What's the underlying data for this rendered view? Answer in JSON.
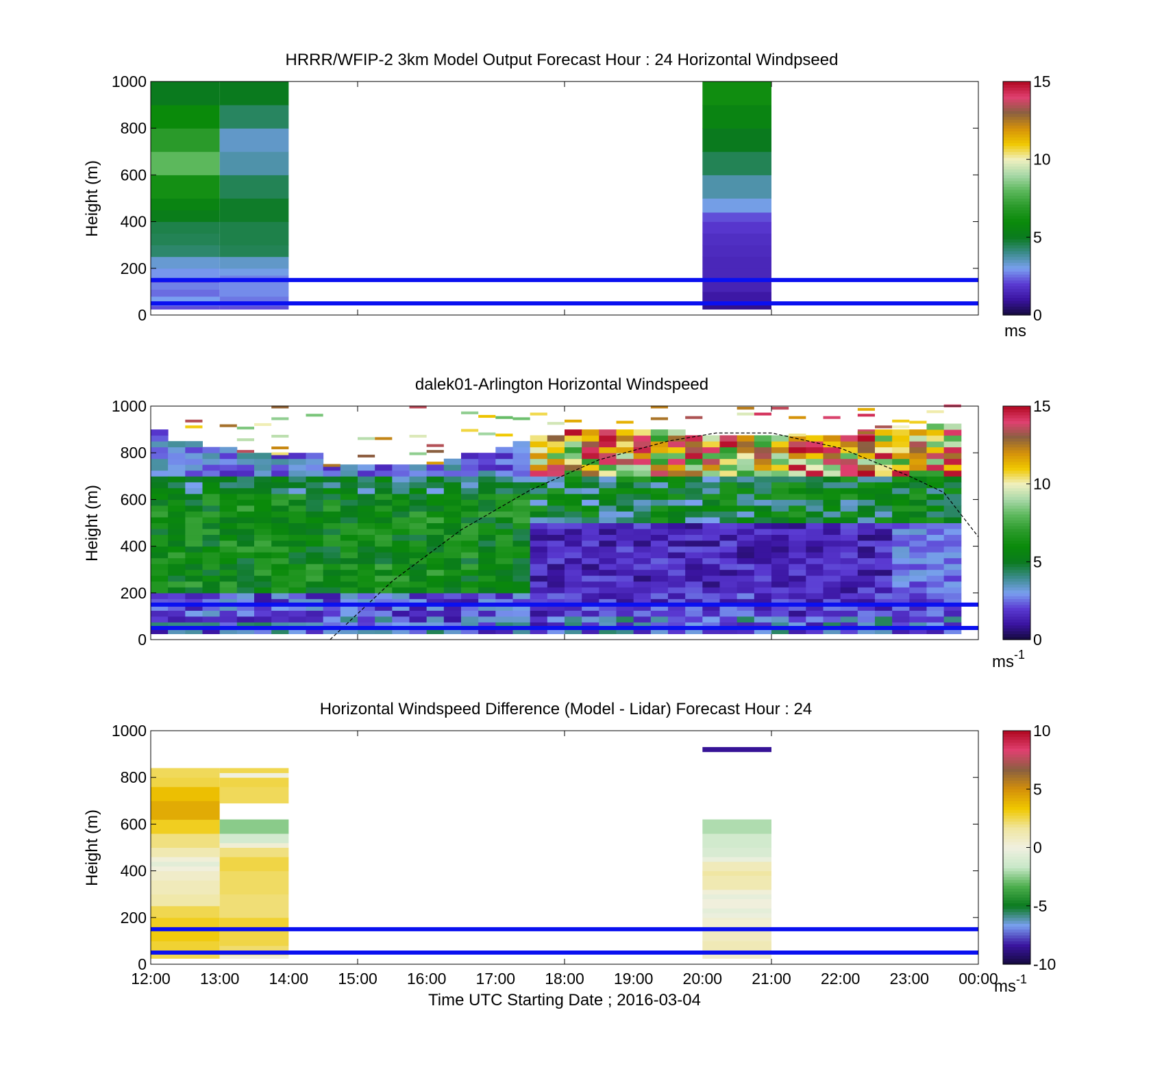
{
  "xaxis": {
    "tick_labels": [
      "12:00",
      "13:00",
      "14:00",
      "15:00",
      "16:00",
      "17:00",
      "18:00",
      "19:00",
      "20:00",
      "21:00",
      "22:00",
      "23:00",
      "00:00"
    ],
    "label": "Time UTC  Starting Date ; 2016-03-04"
  },
  "colors": {
    "reference_line": "#0a10f0",
    "speed_colormap": [
      "#140a3c",
      "#3a14a0",
      "#5a3ad2",
      "#7aa0f0",
      "#3c8c8c",
      "#0a7a1e",
      "#0a8a0a",
      "#2a9a2a",
      "#5cb85c",
      "#a8d8a8",
      "#f0f0c0",
      "#f0c800",
      "#d4900a",
      "#8a6040",
      "#e04070",
      "#b00820"
    ],
    "diff_colormap": [
      "#140a3c",
      "#3a14a0",
      "#7aa0f0",
      "#0a7a1e",
      "#4cae4c",
      "#c8e8c8",
      "#f0f0e0",
      "#f0e6a0",
      "#f0c800",
      "#d4900a",
      "#8a6040",
      "#e04070",
      "#b00820"
    ]
  },
  "chart_data": [
    {
      "type": "heatmap",
      "title": "HRRR/WFIP-2 3km Model Output   Forecast Hour : 24 Horizontal Windpseed",
      "ylabel": "Height (m)",
      "ylim": [
        0,
        1000
      ],
      "yticks": [
        "0",
        "200",
        "400",
        "600",
        "800",
        "1000"
      ],
      "colorbar": {
        "ticks": [
          "0",
          "5",
          "10",
          "15"
        ],
        "unit": "ms",
        "unit_sup": "",
        "range": [
          0,
          15
        ]
      },
      "reference_lines_m": [
        50,
        150
      ],
      "columns": [
        {
          "t0": 0,
          "t1": 1,
          "cells": [
            [
              25,
              40,
              2.2
            ],
            [
              40,
              55,
              2.7
            ],
            [
              55,
              80,
              3.0
            ],
            [
              80,
              110,
              2.5
            ],
            [
              110,
              140,
              2.7
            ],
            [
              140,
              160,
              2.2
            ],
            [
              160,
              200,
              2.9
            ],
            [
              200,
              250,
              3.3
            ],
            [
              250,
              300,
              4.3
            ],
            [
              300,
              350,
              4.5
            ],
            [
              350,
              400,
              4.6
            ],
            [
              400,
              450,
              5.2
            ],
            [
              450,
              500,
              5.6
            ],
            [
              500,
              600,
              6.3
            ],
            [
              600,
              700,
              8.0
            ],
            [
              700,
              800,
              7.0
            ],
            [
              800,
              900,
              6.0
            ],
            [
              900,
              1000,
              5.0
            ]
          ]
        },
        {
          "t0": 1,
          "t1": 2,
          "cells": [
            [
              25,
              40,
              2.2
            ],
            [
              40,
              80,
              2.6
            ],
            [
              80,
              140,
              2.8
            ],
            [
              140,
              170,
              2.7
            ],
            [
              170,
              200,
              3.1
            ],
            [
              200,
              250,
              3.4
            ],
            [
              250,
              300,
              4.5
            ],
            [
              300,
              400,
              4.6
            ],
            [
              400,
              500,
              4.9
            ],
            [
              500,
              600,
              4.5
            ],
            [
              600,
              700,
              3.7
            ],
            [
              700,
              800,
              3.4
            ],
            [
              800,
              900,
              4.4
            ],
            [
              900,
              1000,
              5.0
            ]
          ]
        },
        {
          "t0": 8,
          "t1": 9,
          "cells": [
            [
              25,
              50,
              0.8
            ],
            [
              50,
              100,
              1.1
            ],
            [
              100,
              150,
              1.4
            ],
            [
              150,
              200,
              1.5
            ],
            [
              200,
              250,
              1.5
            ],
            [
              250,
              300,
              1.6
            ],
            [
              300,
              350,
              1.7
            ],
            [
              350,
              400,
              1.9
            ],
            [
              400,
              440,
              2.2
            ],
            [
              440,
              500,
              3.1
            ],
            [
              500,
              600,
              3.7
            ],
            [
              600,
              700,
              4.5
            ],
            [
              700,
              800,
              5.0
            ],
            [
              800,
              900,
              5.6
            ],
            [
              900,
              1000,
              6.2
            ]
          ]
        }
      ]
    },
    {
      "type": "heatmap",
      "title": "dalek01-Arlington  Horizontal Windspeed",
      "ylabel": "Height (m)",
      "ylim": [
        0,
        1000
      ],
      "yticks": [
        "0",
        "200",
        "400",
        "600",
        "800",
        "1000"
      ],
      "colorbar": {
        "ticks": [
          "0",
          "5",
          "10",
          "15"
        ],
        "unit": "ms",
        "unit_sup": "-1",
        "range": [
          0,
          15
        ]
      },
      "reference_lines_m": [
        50,
        150
      ],
      "time_step_h": 0.25,
      "height_step_m": 25,
      "top_m": [
        880,
        830,
        830,
        820,
        810,
        800,
        790,
        790,
        790,
        780,
        740,
        730,
        730,
        730,
        730,
        740,
        750,
        760,
        790,
        800,
        820,
        840,
        860,
        870,
        880,
        890,
        890,
        900,
        900,
        890,
        880,
        870,
        860,
        860,
        860,
        860,
        860,
        870,
        870,
        870,
        870,
        880,
        880,
        880,
        900,
        920,
        920,
        920
      ],
      "notes": "Lidar speed field: low-level jet (~5-8 ms-1) between 200 and 700 m from 12:00 to 17:30 UTC, then weak winds (0.5-3 ms-1) below 500 m; strong speeds (10-15 ms-1) scattered above 700 m after 18:00 UTC",
      "dashed_curve": {
        "style": "dashed",
        "points": [
          [
            2.6,
            0
          ],
          [
            3.5,
            250
          ],
          [
            4.5,
            470
          ],
          [
            5.5,
            640
          ],
          [
            6.5,
            770
          ],
          [
            7.5,
            850
          ],
          [
            8.2,
            885
          ],
          [
            9,
            885
          ],
          [
            10,
            820
          ],
          [
            11,
            700
          ],
          [
            11.5,
            630
          ],
          [
            12,
            440
          ]
        ]
      }
    },
    {
      "type": "heatmap",
      "title": "Horizontal Windspeed Difference (Model - Lidar) Forecast Hour : 24",
      "ylabel": "Height (m)",
      "ylim": [
        0,
        1000
      ],
      "yticks": [
        "0",
        "200",
        "400",
        "600",
        "800",
        "1000"
      ],
      "colorbar": {
        "ticks": [
          "-10",
          "-5",
          "0",
          "5",
          "10"
        ],
        "unit": "ms",
        "unit_sup": "-1",
        "range": [
          -10,
          10
        ]
      },
      "reference_lines_m": [
        50,
        150
      ],
      "columns": [
        {
          "t0": 0,
          "t1": 1,
          "cells": [
            [
              25,
              50,
              2.5
            ],
            [
              50,
              100,
              2.8
            ],
            [
              100,
              150,
              3.2
            ],
            [
              150,
              200,
              3.0
            ],
            [
              200,
              250,
              2.5
            ],
            [
              250,
              300,
              1.4
            ],
            [
              300,
              360,
              1.0
            ],
            [
              360,
              400,
              0.6
            ],
            [
              400,
              420,
              0.1
            ],
            [
              420,
              440,
              -0.6
            ],
            [
              440,
              460,
              0.2
            ],
            [
              460,
              500,
              1.2
            ],
            [
              500,
              560,
              2.0
            ],
            [
              560,
              620,
              3.0
            ],
            [
              620,
              700,
              4.2
            ],
            [
              700,
              760,
              3.6
            ],
            [
              760,
              800,
              2.6
            ],
            [
              800,
              840,
              2.4
            ]
          ]
        },
        {
          "t0": 1,
          "t1": 2,
          "cells": [
            [
              25,
              40,
              0.2
            ],
            [
              40,
              80,
              2.2
            ],
            [
              80,
              150,
              2.6
            ],
            [
              150,
              200,
              2.8
            ],
            [
              200,
              300,
              2.1
            ],
            [
              300,
              400,
              2.3
            ],
            [
              400,
              460,
              2.6
            ],
            [
              460,
              500,
              2.0
            ],
            [
              500,
              520,
              0.3
            ],
            [
              520,
              560,
              -1.2
            ],
            [
              560,
              620,
              -2.5
            ],
            [
              690,
              760,
              2.4
            ],
            [
              760,
              800,
              2.6
            ],
            [
              800,
              820,
              0.0
            ],
            [
              820,
              840,
              2.5
            ]
          ]
        },
        {
          "t0": 8,
          "t1": 9,
          "cells": [
            [
              25,
              60,
              0.5
            ],
            [
              60,
              100,
              1.1
            ],
            [
              100,
              150,
              0.8
            ],
            [
              150,
              200,
              0.4
            ],
            [
              200,
              220,
              -0.2
            ],
            [
              220,
              240,
              -0.5
            ],
            [
              240,
              280,
              0.1
            ],
            [
              280,
              300,
              -0.4
            ],
            [
              300,
              320,
              0.2
            ],
            [
              320,
              380,
              1.2
            ],
            [
              380,
              400,
              1.6
            ],
            [
              400,
              440,
              1.0
            ],
            [
              440,
              460,
              -0.3
            ],
            [
              460,
              500,
              -1.0
            ],
            [
              500,
              560,
              -1.3
            ],
            [
              560,
              620,
              -2.0
            ],
            [
              910,
              930,
              -8.5
            ]
          ]
        }
      ]
    }
  ]
}
